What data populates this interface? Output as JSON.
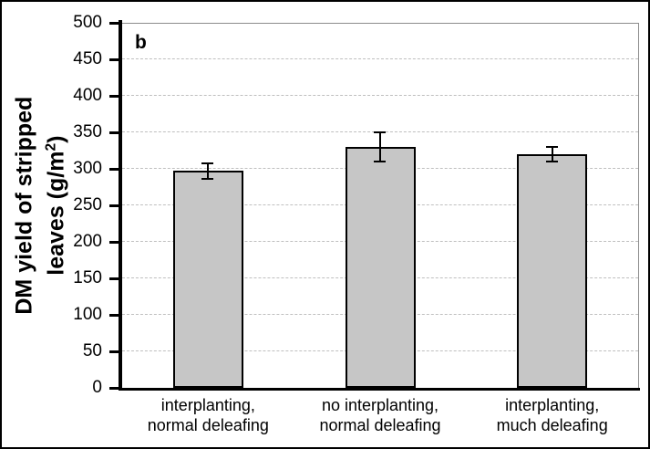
{
  "chart_data": {
    "type": "bar",
    "categories": [
      "interplanting,\nnormal deleafing",
      "no interplanting,\nnormal deleafing",
      "interplanting,\nmuch deleafing"
    ],
    "values": [
      297,
      330,
      320
    ],
    "errors": [
      11,
      20,
      10
    ],
    "title": "",
    "xlabel": "",
    "ylabel": "DM yield of stripped leaves (g/m²)",
    "ylabel_lines": {
      "line1": "DM yield of stripped",
      "line2_pre": "leaves (g/m",
      "line2_sup": "2",
      "line2_post": ")"
    },
    "annotation": "b",
    "ylim": [
      0,
      500
    ],
    "yticks": [
      0,
      50,
      100,
      150,
      200,
      250,
      300,
      350,
      400,
      450,
      500
    ],
    "grid": "horizontal-dashed",
    "legend": "none",
    "bar_color": "#c6c6c6",
    "bar_border_color": "#000000",
    "grid_color": "#bfbfbf",
    "axis_color": "#000000",
    "plot_border_color": "#8c8c8c"
  }
}
